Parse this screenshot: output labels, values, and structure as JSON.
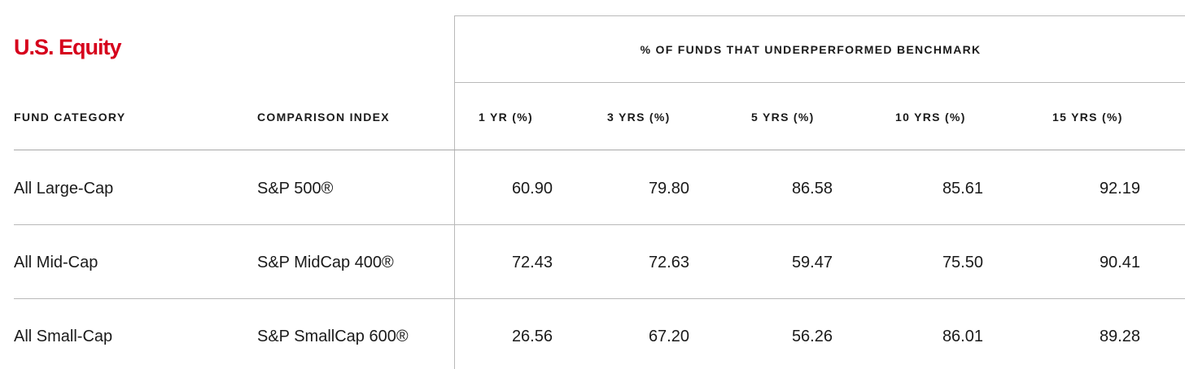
{
  "section_title": "U.S. Equity",
  "group_header": "% OF FUNDS THAT UNDERPERFORMED BENCHMARK",
  "columns": {
    "fund_category": "FUND CATEGORY",
    "comparison_index": "COMPARISON INDEX",
    "yr1": "1 YR (%)",
    "yr3": "3 YRS (%)",
    "yr5": "5 YRS (%)",
    "yr10": "10 YRS (%)",
    "yr15": "15 YRS (%)"
  },
  "rows": [
    {
      "category": "All Large-Cap",
      "index": "S&P 500®",
      "yr1": "60.90",
      "yr3": "79.80",
      "yr5": "86.58",
      "yr10": "85.61",
      "yr15": "92.19"
    },
    {
      "category": "All Mid-Cap",
      "index": "S&P MidCap 400®",
      "yr1": "72.43",
      "yr3": "72.63",
      "yr5": "59.47",
      "yr10": "75.50",
      "yr15": "90.41"
    },
    {
      "category": "All Small-Cap",
      "index": "S&P SmallCap 600®",
      "yr1": "26.56",
      "yr3": "67.20",
      "yr5": "56.26",
      "yr10": "86.01",
      "yr15": "89.28"
    }
  ],
  "colors": {
    "accent": "#d6001c",
    "rule": "#b9b9b9",
    "text": "#1a1a1a"
  }
}
